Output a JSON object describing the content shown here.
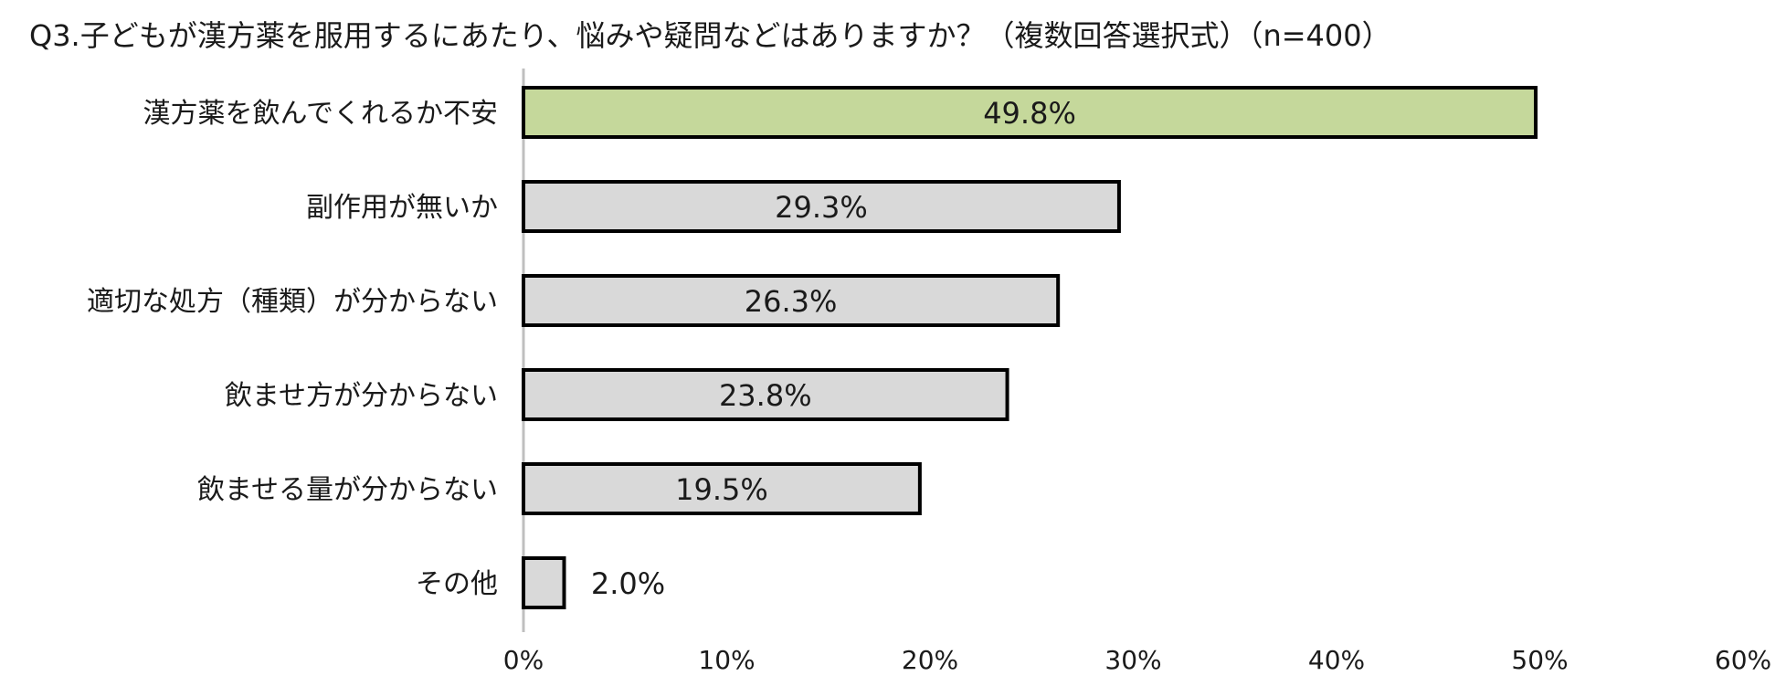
{
  "chart_data": {
    "type": "bar",
    "orientation": "horizontal",
    "title": "Q3.子どもが漢方薬を服用するにあたり、悩みや疑問などはありますか？（複数回答選択式）（n=400）",
    "categories": [
      "漢方薬を飲んでくれるか不安",
      "副作用が無いか",
      "適切な処方（種類）が分からない",
      "飲ませ方が分からない",
      "飲ませる量が分からない",
      "その他"
    ],
    "values": [
      49.8,
      29.3,
      26.3,
      23.8,
      19.5,
      2.0
    ],
    "data_labels": [
      "49.8%",
      "29.3%",
      "26.3%",
      "23.8%",
      "19.5%",
      "2.0%"
    ],
    "xlim": [
      0,
      60
    ],
    "x_ticks": [
      "0%",
      "10%",
      "20%",
      "30%",
      "40%",
      "50%",
      "60%"
    ],
    "colors": [
      "#c5d89b",
      "#d9d9d9",
      "#d9d9d9",
      "#d9d9d9",
      "#d9d9d9",
      "#d9d9d9"
    ],
    "bar_outline": "#000000",
    "axis_color": "#bfbfbf",
    "grid": false,
    "legend": "none"
  }
}
